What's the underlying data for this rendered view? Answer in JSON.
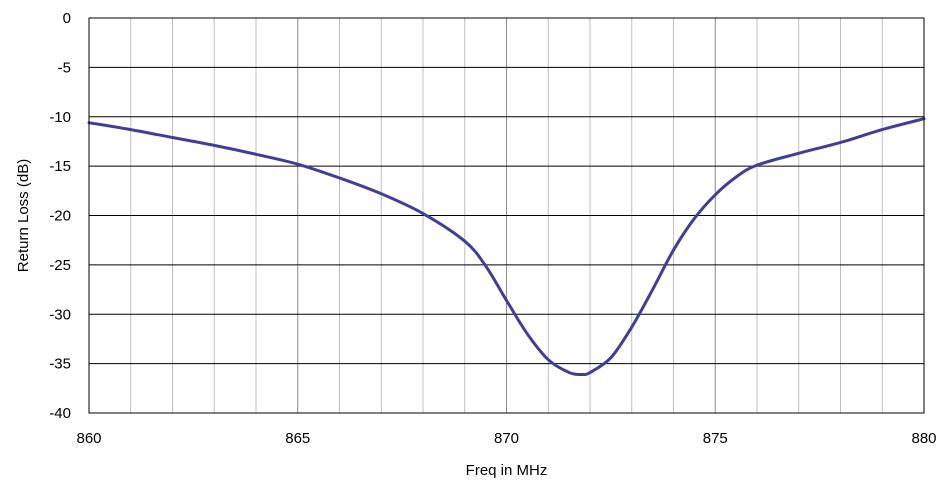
{
  "chart_data": {
    "type": "line",
    "title": "",
    "xlabel": "Freq in MHz",
    "ylabel": "Return Loss (dB)",
    "xlim": [
      860,
      880
    ],
    "ylim": [
      -40,
      0
    ],
    "x_ticks": [
      860,
      865,
      870,
      875,
      880
    ],
    "x_tick_labels": [
      "860",
      "865",
      "870",
      "875",
      "880"
    ],
    "x_minor_gridline_step": 1,
    "y_ticks": [
      0,
      -5,
      -10,
      -15,
      -20,
      -25,
      -30,
      -35,
      -40
    ],
    "y_tick_labels": [
      "0",
      "-5",
      "-10",
      "-15",
      "-20",
      "-25",
      "-30",
      "-35",
      "-40"
    ],
    "grid": true,
    "legend": "none",
    "colors": {
      "series": "#3f3f96",
      "grid": "#bfbfbf",
      "major_grid": "#000000",
      "frame": "#000000"
    },
    "series": [
      {
        "x": [
          860,
          861,
          862,
          863,
          864,
          865,
          866,
          867,
          868,
          869,
          869.5,
          870,
          870.5,
          871,
          871.5,
          871.8,
          872,
          872.5,
          873,
          873.5,
          874,
          874.5,
          875,
          875.5,
          876,
          877,
          878,
          879,
          880
        ],
        "y": [
          -10.6,
          -11.3,
          -12.1,
          -12.9,
          -13.8,
          -14.8,
          -16.2,
          -17.8,
          -19.8,
          -22.6,
          -25.1,
          -28.6,
          -32.0,
          -34.6,
          -35.9,
          -36.1,
          -35.9,
          -34.4,
          -31.3,
          -27.5,
          -23.5,
          -20.3,
          -17.9,
          -16.1,
          -14.9,
          -13.7,
          -12.6,
          -11.3,
          -10.2
        ]
      }
    ]
  }
}
